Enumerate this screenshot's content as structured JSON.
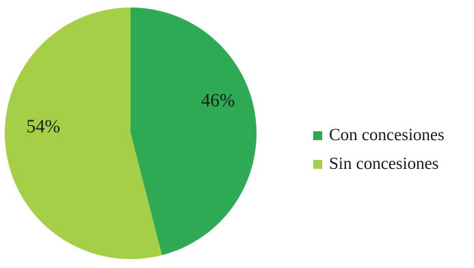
{
  "chart_data": {
    "type": "pie",
    "categories": [
      "Con concesiones",
      "Sin concesiones"
    ],
    "values": [
      46,
      54
    ],
    "data_labels": [
      "46%",
      "54%"
    ],
    "colors": [
      "#2eaa55",
      "#a6cf48"
    ],
    "start_angle_deg": 0,
    "direction": "clockwise",
    "legend_position": "right"
  },
  "legend": {
    "items": [
      {
        "label": "Con concesiones",
        "color": "#2eaa55"
      },
      {
        "label": "Sin concesiones",
        "color": "#a6cf48"
      }
    ]
  }
}
